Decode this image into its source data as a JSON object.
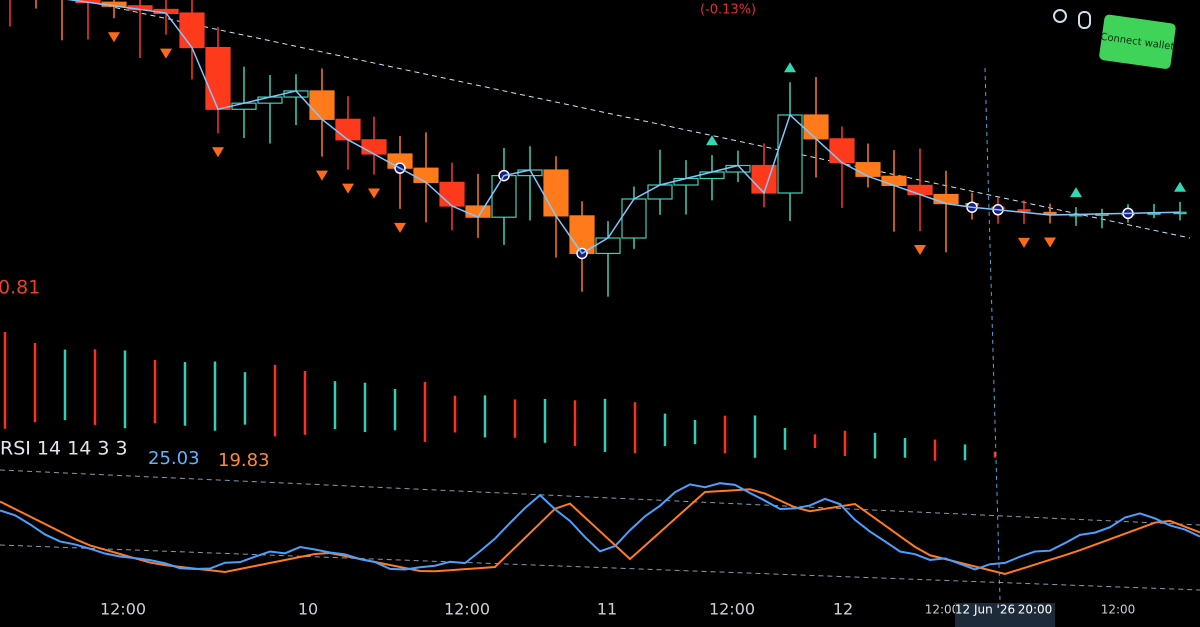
{
  "header": {
    "change": "(-0.13%)",
    "button": "Connect wallet"
  },
  "price_label": "0.81",
  "rsi": {
    "label": "RSI 14 14 3 3",
    "k": "25.03",
    "d": "19.83"
  },
  "time_axis": [
    "12:00",
    "10",
    "12:00",
    "11",
    "12:00",
    "12",
    "12:00",
    "12 Jun '26",
    "20:00",
    "12:00"
  ]
}
